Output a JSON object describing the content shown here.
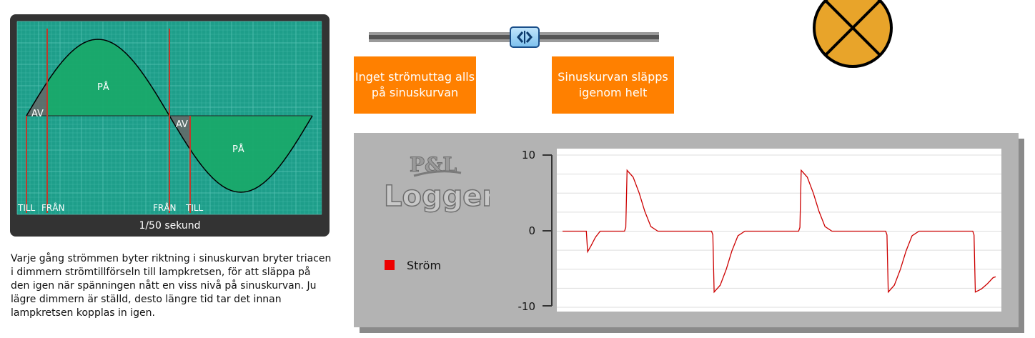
{
  "scope": {
    "labels": {
      "on_top": "PÅ",
      "on_bottom": "PÅ",
      "off_left": "AV",
      "off_right": "AV",
      "till_1": "TILL",
      "fran_1": "FRÅN",
      "fran_2": "FRÅN",
      "till_2": "TILL"
    },
    "caption": "1/50 sekund",
    "colors": {
      "background": "#1e9e8a",
      "grid": "#5cc7b8",
      "on_region": "#19a96a",
      "off_region": "#666666",
      "marker": "#c0392b",
      "curve": "#000000"
    }
  },
  "description": "Varje gång strömmen byter riktning i sinuskurvan bryter triacen i dimmern strömtillförseln till lampkretsen, för att släppa på den igen när spänningen nått en viss nivå på sinuskurvan. Ju lägre dimmern är ställd, desto längre tid tar det innan lampkretsen kopplas in igen.",
  "slider": {
    "value_percent": 54,
    "handle_icon": "left-right-arrows-icon"
  },
  "buttons": {
    "left": "Inget strömuttag alls på sinuskurvan",
    "right": "Sinuskurvan släpps igenom helt"
  },
  "lamp": {
    "icon": "lamp-symbol-icon",
    "color": "#e8a42a"
  },
  "logger": {
    "logo_line1": "P&L",
    "logo_line2": "Logger",
    "legend": "Ström",
    "series_color": "#cc0000",
    "legend_color": "#ee0000"
  },
  "chart_data": {
    "type": "line",
    "title": "",
    "xlabel": "",
    "ylabel": "",
    "ylim": [
      -10,
      10
    ],
    "yticks": [
      10,
      0,
      -10
    ],
    "grid": true,
    "series": [
      {
        "name": "Ström",
        "x": [
          0,
          0.055,
          0.058,
          0.066,
          0.076,
          0.087,
          0.096,
          0.143,
          0.146,
          0.149,
          0.163,
          0.177,
          0.19,
          0.204,
          0.22,
          0.232,
          0.253,
          0.344,
          0.347,
          0.35,
          0.364,
          0.378,
          0.391,
          0.405,
          0.421,
          0.433,
          0.454,
          0.545,
          0.548,
          0.551,
          0.565,
          0.579,
          0.592,
          0.606,
          0.622,
          0.634,
          0.655,
          0.746,
          0.749,
          0.752,
          0.766,
          0.78,
          0.793,
          0.807,
          0.823,
          0.835,
          0.856,
          0.947,
          0.95,
          0.953,
          0.967,
          0.981,
          0.994,
          1.0
        ],
        "y": [
          0,
          0,
          -2.7,
          -1.9,
          -0.8,
          0,
          0,
          0,
          0.5,
          8.0,
          7.1,
          5.0,
          2.6,
          0.6,
          0,
          0,
          0,
          0,
          -0.5,
          -8.0,
          -7.1,
          -5.0,
          -2.6,
          -0.6,
          0,
          0,
          0,
          0,
          0.5,
          8.0,
          7.1,
          5.0,
          2.6,
          0.6,
          0,
          0,
          0,
          0,
          -0.5,
          -8.0,
          -7.1,
          -5.0,
          -2.6,
          -0.6,
          0,
          0,
          0,
          0,
          -0.5,
          -8.0,
          -7.6,
          -6.9,
          -6.1,
          -6.0
        ]
      }
    ]
  }
}
